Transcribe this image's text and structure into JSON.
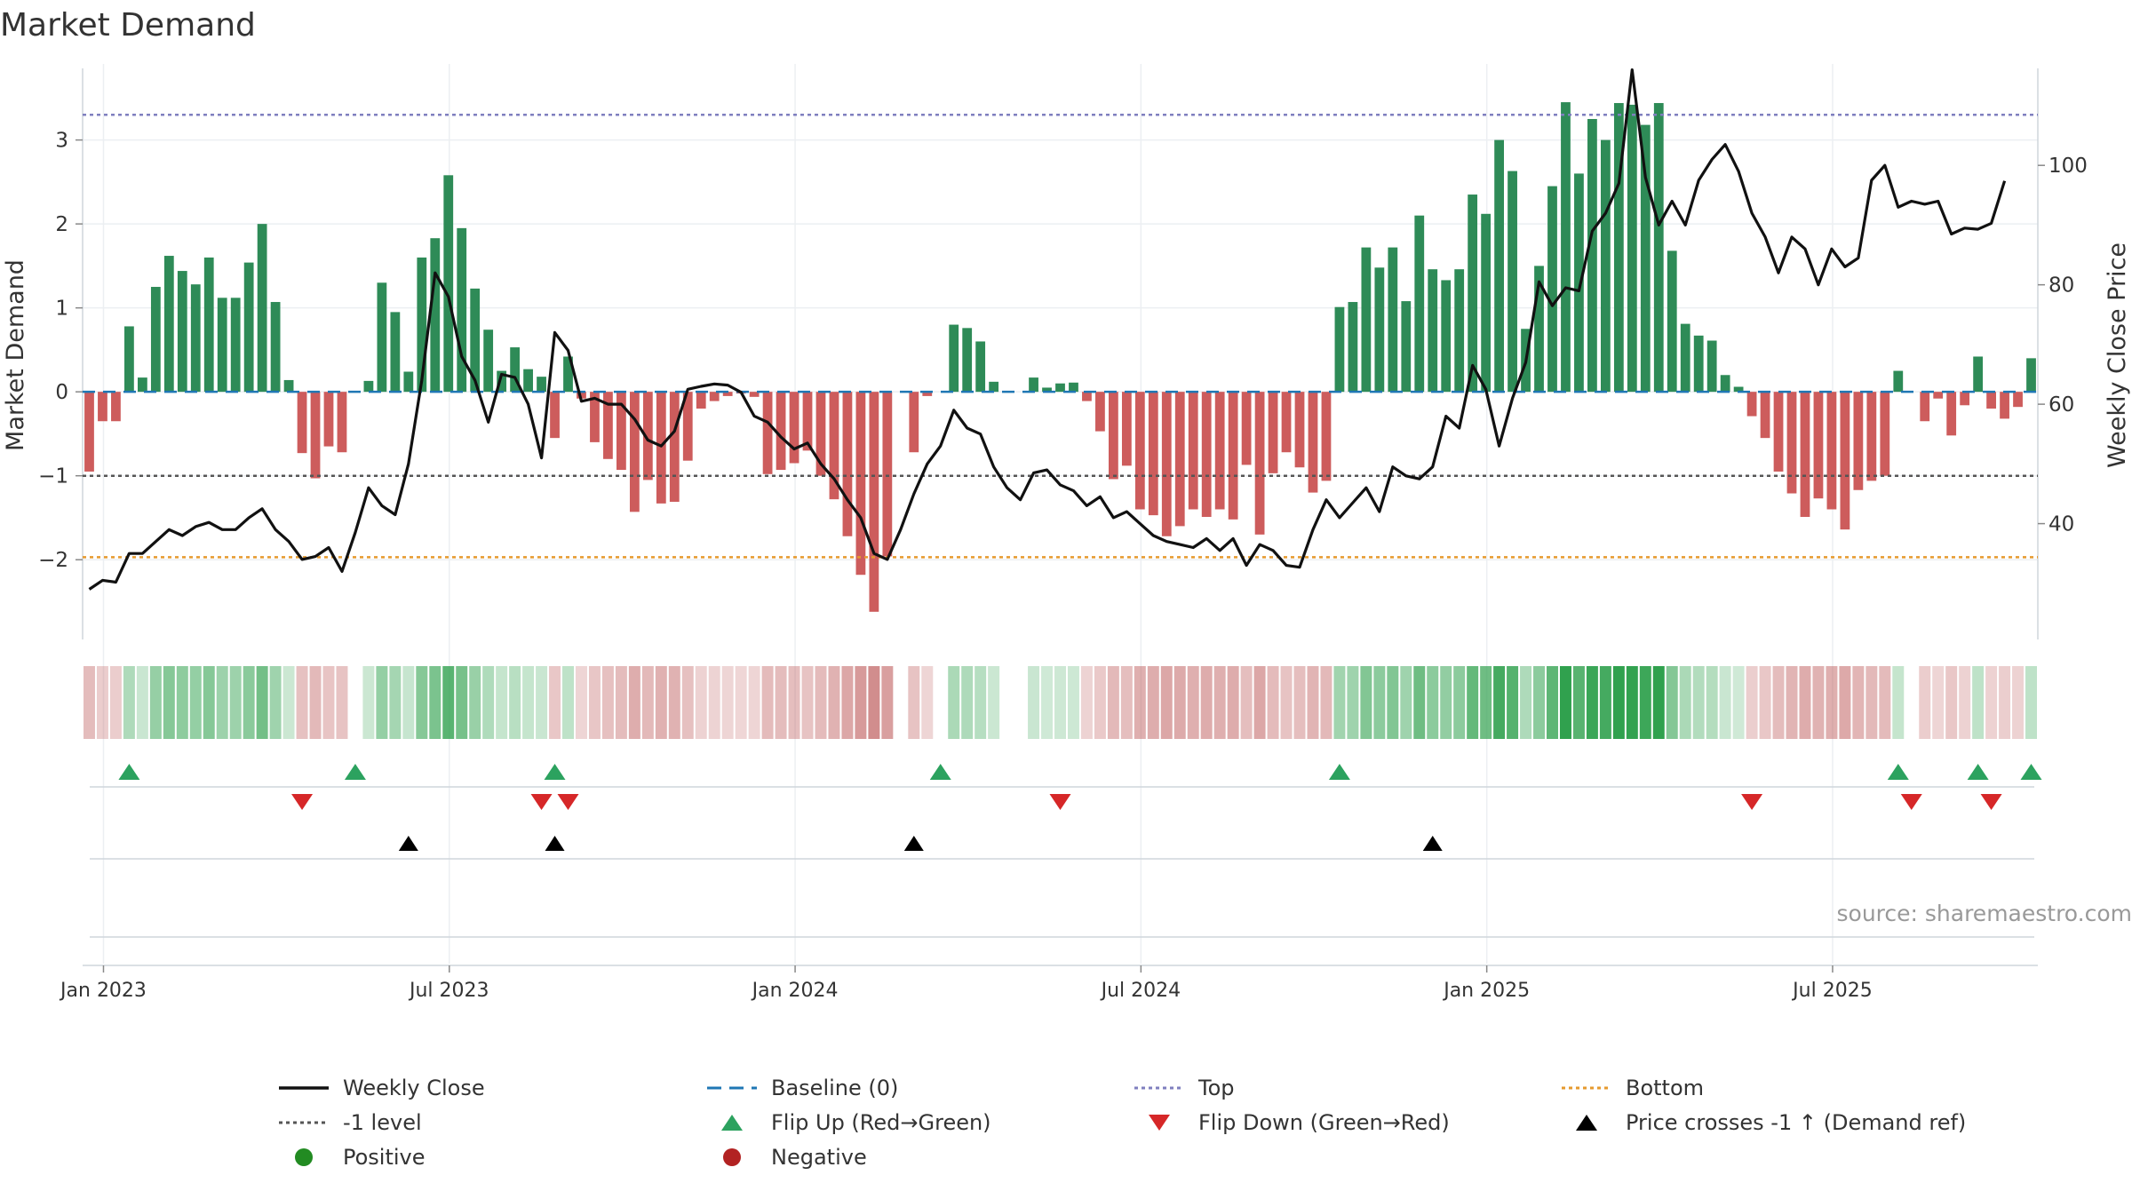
{
  "title": "Market Demand",
  "source": "source: sharemaestro.com",
  "colors": {
    "pos": "#2e8b57",
    "neg": "#cd5c5c",
    "price": "#111111",
    "baseline": "#1f77b4",
    "top": "#7f7fbf",
    "bottom": "#e69a2e",
    "level": "#555555",
    "flipUp": "#2ca25f",
    "flipDown": "#d62728",
    "cross": "#000000",
    "posDot": "#228b22",
    "negDot": "#b22222"
  },
  "chart_data": {
    "type": "bar+line",
    "ylabel_left": "Market Demand",
    "ylabel_right": "Weekly Close Price",
    "ylim_left": [
      -2.95,
      3.8
    ],
    "ylim_right": [
      20.6,
      115.5
    ],
    "left_ticks": [
      {
        "v": 3,
        "label": "3"
      },
      {
        "v": 2,
        "label": "2"
      },
      {
        "v": 1,
        "label": "1"
      },
      {
        "v": 0,
        "label": "0"
      },
      {
        "v": -1,
        "label": "−1"
      },
      {
        "v": -2,
        "label": "−2"
      }
    ],
    "right_ticks": [
      {
        "v": 100,
        "label": "100"
      },
      {
        "v": 80,
        "label": "80"
      },
      {
        "v": 60,
        "label": "60"
      },
      {
        "v": 40,
        "label": "40"
      }
    ],
    "x_ticks": [
      "Jan 2023",
      "Jul 2023",
      "Jan 2024",
      "Jul 2024",
      "Jan 2025",
      "Jul 2025"
    ],
    "reference_lines": {
      "top": 3.3,
      "bottom": -1.97,
      "level": -1,
      "baseline": 0
    },
    "demand": [
      -0.95,
      -0.35,
      -0.35,
      0.78,
      0.17,
      1.25,
      1.62,
      1.44,
      1.28,
      1.6,
      1.12,
      1.12,
      1.54,
      2.0,
      1.07,
      0.14,
      -0.73,
      -1.03,
      -0.65,
      -0.72,
      0,
      0.13,
      1.3,
      0.95,
      0.24,
      1.6,
      1.83,
      2.58,
      1.95,
      1.23,
      0.74,
      0.25,
      0.53,
      0.27,
      0.18,
      -0.55,
      0.42,
      -0.08,
      -0.6,
      -0.8,
      -0.93,
      -1.43,
      -1.05,
      -1.33,
      -1.31,
      -0.82,
      -0.2,
      -0.11,
      -0.05,
      -0.02,
      -0.06,
      -0.98,
      -0.93,
      -0.85,
      -0.7,
      -1.0,
      -1.28,
      -1.72,
      -2.18,
      -2.62,
      -1.96,
      0,
      -0.72,
      -0.05,
      0,
      0.8,
      0.76,
      0.6,
      0.12,
      0,
      0,
      0.17,
      0.05,
      0.1,
      0.11,
      -0.11,
      -0.47,
      -1.04,
      -0.88,
      -1.4,
      -1.47,
      -1.72,
      -1.6,
      -1.4,
      -1.49,
      -1.4,
      -1.52,
      -0.87,
      -1.7,
      -0.97,
      -0.72,
      -0.9,
      -1.2,
      -1.06,
      1.01,
      1.07,
      1.72,
      1.48,
      1.72,
      1.08,
      2.1,
      1.46,
      1.33,
      1.46,
      2.35,
      2.12,
      3.0,
      2.63,
      0.75,
      1.5,
      2.45,
      3.45,
      2.6,
      3.25,
      3.0,
      3.44,
      3.42,
      3.18,
      3.44,
      1.68,
      0.81,
      0.67,
      0.61,
      0.2,
      0.06,
      -0.29,
      -0.55,
      -0.95,
      -1.21,
      -1.49,
      -1.27,
      -1.4,
      -1.64,
      -1.17,
      -1.06,
      -1.0,
      0.25,
      0.0,
      -0.35,
      -0.08,
      -0.52,
      -0.16,
      0.42,
      -0.2,
      -0.32,
      -0.18,
      0.4
    ],
    "weekly_close": [
      29,
      30.5,
      30.2,
      35,
      35,
      37,
      39,
      38,
      39.5,
      40.2,
      39,
      39,
      41,
      42.5,
      39,
      37,
      34,
      34.5,
      36,
      32,
      38.5,
      46,
      43,
      41.5,
      50,
      64,
      82,
      78,
      68,
      64,
      57,
      65,
      64.5,
      60,
      51,
      72,
      69,
      60.5,
      61,
      60,
      60,
      57.5,
      54,
      53,
      55.5,
      62.5,
      63,
      63.4,
      63.2,
      62,
      58,
      57,
      54.5,
      52.5,
      53.5,
      50,
      47.5,
      44,
      41,
      35,
      34,
      39,
      45,
      50,
      53,
      59,
      56,
      55,
      49.5,
      46,
      44,
      48.5,
      49,
      46.5,
      45.5,
      43,
      44.5,
      41,
      42,
      40,
      38,
      37,
      36.5,
      36,
      37.5,
      35.5,
      37.5,
      33,
      36.5,
      35.5,
      33,
      32.7,
      39,
      44,
      41,
      43.5,
      46,
      42,
      49.5,
      48,
      47.5,
      49.5,
      58,
      56,
      66.5,
      62.5,
      53,
      61,
      67,
      80.5,
      76.5,
      79.5,
      79,
      89,
      92,
      97,
      116,
      98,
      90,
      94,
      90,
      97.5,
      101,
      103.5,
      99,
      92,
      88,
      82,
      88,
      86,
      80,
      86,
      83,
      84.5,
      97.5,
      100,
      93,
      94,
      93.5,
      94,
      88.5,
      89.5,
      89.3,
      90.3,
      97.4
    ],
    "flip_up_weeks": [
      3,
      20,
      35,
      64,
      94,
      136,
      142,
      146
    ],
    "flip_down_weeks": [
      16,
      34,
      36,
      73,
      125,
      137,
      143
    ],
    "price_cross_weeks": [
      24,
      35,
      62,
      101
    ],
    "legend": [
      {
        "key": "line",
        "color": "#111111",
        "label": "Weekly Close"
      },
      {
        "key": "dash",
        "color": "#1f77b4",
        "label": "Baseline (0)"
      },
      {
        "key": "dot",
        "color": "#7f7fbf",
        "label": "Top"
      },
      {
        "key": "dot",
        "color": "#e69a2e",
        "label": "Bottom"
      },
      {
        "key": "dot",
        "color": "#555555",
        "label": "-1 level"
      },
      {
        "key": "triup",
        "color": "#2ca25f",
        "label": "Flip Up (Red→Green)"
      },
      {
        "key": "tridown",
        "color": "#d62728",
        "label": "Flip Down (Green→Red)"
      },
      {
        "key": "triup",
        "color": "#000000",
        "label": "Price crosses -1 ↑ (Demand ref)"
      },
      {
        "key": "circle",
        "color": "#228b22",
        "label": "Positive"
      },
      {
        "key": "circle",
        "color": "#b22222",
        "label": "Negative"
      }
    ]
  }
}
